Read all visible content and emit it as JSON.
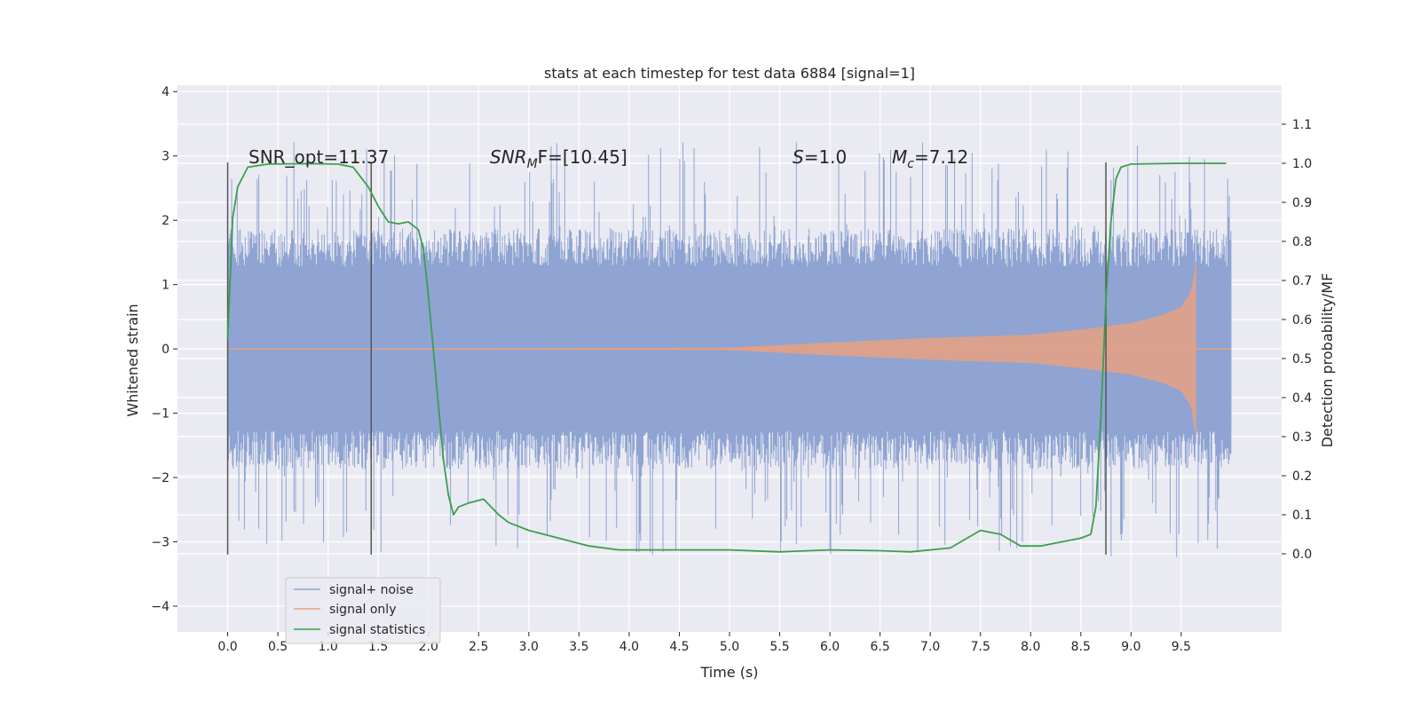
{
  "chart_data": {
    "type": "line",
    "title": "stats at each timestep for test data 6884 [signal=1]",
    "xlabel": "Time (s)",
    "ylabel": "Whitened strain",
    "y2label": "Detection probability/MF",
    "xlim": [
      -0.5,
      10.5
    ],
    "ylim": [
      -4.4,
      4.1
    ],
    "y2lim": [
      -0.2,
      1.2
    ],
    "x_ticks": [
      0.0,
      0.5,
      1.0,
      1.5,
      2.0,
      2.5,
      3.0,
      3.5,
      4.0,
      4.5,
      5.0,
      5.5,
      6.0,
      6.5,
      7.0,
      7.5,
      8.0,
      8.5,
      9.0,
      9.5
    ],
    "x_tick_labels": [
      "0.0",
      "0.5",
      "1.0",
      "1.5",
      "2.0",
      "2.5",
      "3.0",
      "3.5",
      "4.0",
      "4.5",
      "5.0",
      "5.5",
      "6.0",
      "6.5",
      "7.0",
      "7.5",
      "8.0",
      "8.5",
      "9.0",
      "9.5"
    ],
    "y_ticks": [
      -4,
      -3,
      -2,
      -1,
      0,
      1,
      2,
      3,
      4
    ],
    "y_tick_labels": [
      "−4",
      "−3",
      "−2",
      "−1",
      "0",
      "1",
      "2",
      "3",
      "4"
    ],
    "y2_ticks": [
      0.0,
      0.1,
      0.2,
      0.3,
      0.4,
      0.5,
      0.6,
      0.7,
      0.8,
      0.9,
      1.0,
      1.1
    ],
    "y2_tick_labels": [
      "0.0",
      "0.1",
      "0.2",
      "0.3",
      "0.4",
      "0.5",
      "0.6",
      "0.7",
      "0.8",
      "0.9",
      "1.0",
      "1.1"
    ],
    "grid": true,
    "legend_position": "lower-left",
    "annotations": [
      {
        "text": "SNR_opt=11.37",
        "x": 0.2,
        "y": 2.9
      },
      {
        "text_main": "SNR",
        "text_sub": "M",
        "text_rest": "F=[10.45]",
        "x": 2.6,
        "y": 2.9
      },
      {
        "text_main": "S",
        "text_rest": "=1.0",
        "x": 5.6,
        "y": 2.9
      },
      {
        "text_main": "M",
        "text_sub": "c",
        "text_rest": "=7.12",
        "x": 6.6,
        "y": 2.9
      }
    ],
    "vertical_lines": [
      {
        "x": 0.0,
        "ymin": -3.2,
        "ymax": 2.9
      },
      {
        "x": 1.43,
        "ymin": -3.2,
        "ymax": 2.9
      },
      {
        "x": 8.75,
        "ymin": -3.2,
        "ymax": 2.9
      }
    ],
    "series": [
      {
        "name": "signal+ noise",
        "color": "#8fa4d2",
        "axis": "left",
        "kind": "noise",
        "x_range": [
          0.0,
          10.0
        ],
        "envelope_typical": 1.7,
        "envelope_peaks": 3.0
      },
      {
        "name": "signal only",
        "color": "#e6a182",
        "axis": "left",
        "kind": "chirp",
        "x_range": [
          0.0,
          9.65
        ],
        "envelope": [
          [
            0.0,
            0.0
          ],
          [
            5.0,
            0.02
          ],
          [
            6.0,
            0.1
          ],
          [
            7.0,
            0.17
          ],
          [
            8.0,
            0.22
          ],
          [
            8.5,
            0.3
          ],
          [
            9.0,
            0.4
          ],
          [
            9.3,
            0.52
          ],
          [
            9.5,
            0.65
          ],
          [
            9.6,
            0.9
          ],
          [
            9.65,
            1.4
          ],
          [
            9.66,
            0.0
          ]
        ]
      },
      {
        "name": "signal statistics",
        "color": "#3d9e4e",
        "axis": "right",
        "kind": "line",
        "points": [
          [
            0.0,
            0.55
          ],
          [
            0.05,
            0.86
          ],
          [
            0.1,
            0.94
          ],
          [
            0.2,
            0.99
          ],
          [
            0.4,
            0.998
          ],
          [
            0.8,
            0.999
          ],
          [
            1.1,
            0.998
          ],
          [
            1.25,
            0.99
          ],
          [
            1.4,
            0.94
          ],
          [
            1.5,
            0.89
          ],
          [
            1.6,
            0.85
          ],
          [
            1.7,
            0.845
          ],
          [
            1.8,
            0.85
          ],
          [
            1.9,
            0.83
          ],
          [
            1.95,
            0.78
          ],
          [
            2.0,
            0.66
          ],
          [
            2.05,
            0.52
          ],
          [
            2.1,
            0.38
          ],
          [
            2.15,
            0.24
          ],
          [
            2.2,
            0.15
          ],
          [
            2.25,
            0.1
          ],
          [
            2.3,
            0.12
          ],
          [
            2.4,
            0.13
          ],
          [
            2.55,
            0.14
          ],
          [
            2.7,
            0.1
          ],
          [
            2.8,
            0.08
          ],
          [
            3.0,
            0.06
          ],
          [
            3.3,
            0.04
          ],
          [
            3.6,
            0.02
          ],
          [
            3.9,
            0.01
          ],
          [
            4.5,
            0.01
          ],
          [
            5.0,
            0.01
          ],
          [
            5.5,
            0.005
          ],
          [
            6.0,
            0.01
          ],
          [
            6.5,
            0.008
          ],
          [
            6.8,
            0.005
          ],
          [
            7.2,
            0.015
          ],
          [
            7.5,
            0.06
          ],
          [
            7.7,
            0.05
          ],
          [
            7.9,
            0.02
          ],
          [
            8.1,
            0.02
          ],
          [
            8.3,
            0.03
          ],
          [
            8.5,
            0.04
          ],
          [
            8.6,
            0.05
          ],
          [
            8.65,
            0.12
          ],
          [
            8.7,
            0.35
          ],
          [
            8.75,
            0.65
          ],
          [
            8.8,
            0.85
          ],
          [
            8.85,
            0.96
          ],
          [
            8.9,
            0.99
          ],
          [
            9.0,
            0.998
          ],
          [
            9.5,
            1.0
          ],
          [
            9.95,
            1.0
          ]
        ]
      }
    ]
  }
}
